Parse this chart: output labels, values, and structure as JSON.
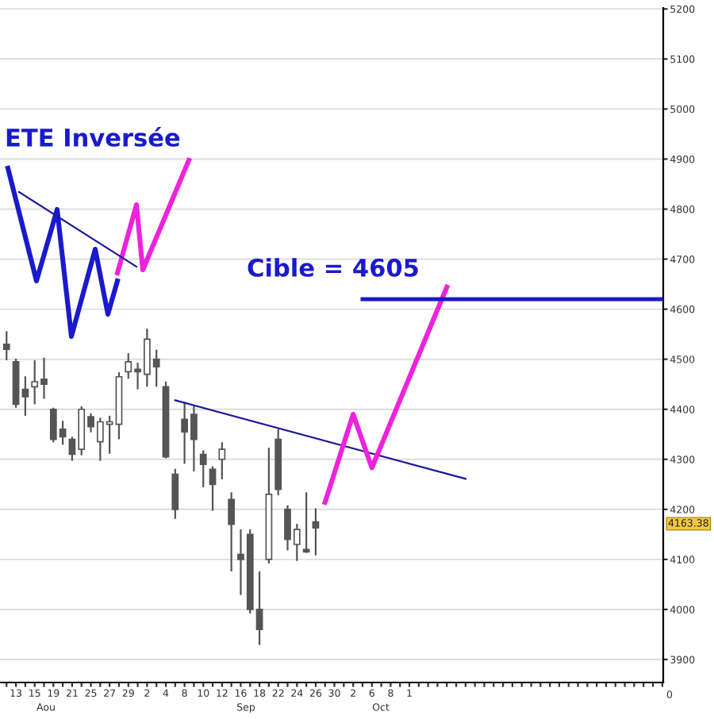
{
  "chart_data": {
    "type": "candlestick",
    "categories": [
      null,
      "13",
      null,
      "15",
      null,
      "19",
      null,
      "21",
      null,
      "25",
      null,
      "27",
      null,
      "29",
      null,
      "2",
      null,
      "4",
      null,
      "8",
      null,
      "10",
      null,
      "12",
      null,
      "16",
      null,
      "18",
      null,
      "22",
      null,
      "24",
      null,
      "26",
      null,
      "30",
      null,
      "2",
      null,
      "6",
      null,
      "8",
      null,
      "1",
      null,
      null,
      null,
      null,
      null,
      null,
      null,
      null,
      null,
      null,
      null,
      null,
      null,
      null,
      null,
      null,
      null,
      null,
      null,
      null,
      null,
      null,
      null,
      null,
      null,
      null,
      null
    ],
    "ohlc": [
      [
        4530,
        4556,
        4498,
        4520
      ],
      [
        4495,
        4501,
        4403,
        4410
      ],
      [
        4440,
        4466,
        4387,
        4425
      ],
      [
        4445,
        4498,
        4410,
        4455
      ],
      [
        4460,
        4503,
        4421,
        4450
      ],
      [
        4400,
        4403,
        4334,
        4340
      ],
      [
        4360,
        4377,
        4329,
        4345
      ],
      [
        4340,
        4345,
        4297,
        4310
      ],
      [
        4320,
        4406,
        4308,
        4400
      ],
      [
        4385,
        4392,
        4354,
        4365
      ],
      [
        4335,
        4383,
        4297,
        4375
      ],
      [
        4370,
        4387,
        4311,
        4375
      ],
      [
        4370,
        4474,
        4340,
        4465
      ],
      [
        4475,
        4512,
        4461,
        4495
      ],
      [
        4480,
        4493,
        4440,
        4475
      ],
      [
        4470,
        4561,
        4445,
        4540
      ],
      [
        4500,
        4519,
        4445,
        4485
      ],
      [
        4445,
        4455,
        4302,
        4305
      ],
      [
        4270,
        4281,
        4181,
        4200
      ],
      [
        4380,
        4415,
        4291,
        4355
      ],
      [
        4390,
        4407,
        4276,
        4340
      ],
      [
        4310,
        4318,
        4244,
        4290
      ],
      [
        4280,
        4286,
        4197,
        4250
      ],
      [
        4300,
        4334,
        4260,
        4320
      ],
      [
        4220,
        4234,
        4076,
        4170
      ],
      [
        4110,
        4160,
        4029,
        4100
      ],
      [
        4150,
        4160,
        3992,
        4000
      ],
      [
        4000,
        4076,
        3929,
        3960
      ],
      [
        4100,
        4323,
        4092,
        4230
      ],
      [
        4340,
        4360,
        4228,
        4240
      ],
      [
        4200,
        4208,
        4118,
        4140
      ],
      [
        4130,
        4171,
        4097,
        4160
      ],
      [
        4120,
        4234,
        4113,
        4115
      ],
      [
        4175,
        4202,
        4108,
        4163
      ],
      null,
      null,
      null,
      null,
      null,
      null,
      null,
      null,
      null,
      null,
      null,
      null,
      null,
      null,
      null,
      null,
      null,
      null,
      null,
      null,
      null,
      null,
      null,
      null,
      null,
      null,
      null,
      null,
      null,
      null,
      null,
      null,
      null,
      null,
      null,
      null,
      null
    ],
    "color": "#555555",
    "series": [
      {
        "type": "line",
        "color": "#1a1a9a",
        "values": [
          null,
          null,
          null,
          null,
          null,
          null,
          null,
          null,
          null,
          null,
          null,
          null,
          null,
          null,
          null,
          null,
          null,
          null,
          4418,
          null,
          null,
          null,
          null,
          null,
          null,
          null,
          null,
          null,
          null,
          null,
          null,
          null,
          null,
          null,
          null,
          null,
          null,
          null,
          null,
          null,
          null,
          null,
          null,
          null,
          null,
          null,
          null,
          null,
          null,
          4261,
          null,
          null,
          null,
          null,
          null,
          null,
          null,
          null,
          null,
          null,
          null,
          null,
          null,
          null,
          null,
          null,
          null,
          null,
          null,
          null,
          null
        ]
      },
      {
        "type": "line",
        "color": "#ee22dd",
        "values": [
          null,
          null,
          null,
          null,
          null,
          null,
          null,
          null,
          null,
          null,
          null,
          null,
          null,
          null,
          null,
          null,
          null,
          null,
          null,
          null,
          null,
          null,
          null,
          null,
          null,
          null,
          null,
          null,
          null,
          null,
          null,
          null,
          null,
          null,
          4214,
          null,
          null,
          4390,
          null,
          4283,
          null,
          null,
          null,
          null,
          null,
          null,
          null,
          4644,
          null,
          null,
          null,
          null,
          null,
          null,
          null,
          null,
          null,
          null,
          null,
          null,
          null,
          null,
          null,
          null,
          null,
          null,
          null,
          null,
          null,
          null,
          null
        ]
      },
      {
        "type": "line",
        "color": "#1a1acc",
        "values": [
          null,
          null,
          null,
          null,
          null,
          null,
          null,
          null,
          null,
          null,
          null,
          null,
          null,
          null,
          null,
          null,
          null,
          null,
          null,
          null,
          null,
          null,
          null,
          null,
          null,
          null,
          null,
          null,
          null,
          null,
          null,
          null,
          null,
          null,
          null,
          null,
          null,
          null,
          4620,
          null,
          null,
          null,
          null,
          null,
          null,
          null,
          null,
          null,
          null,
          null,
          null,
          null,
          null,
          null,
          null,
          null,
          null,
          null,
          null,
          null,
          null,
          null,
          null,
          null,
          null,
          null,
          null,
          null,
          null,
          null,
          4620
        ]
      }
    ],
    "ylim": [
      3854,
      5202
    ],
    "yticks": [
      3900,
      4000,
      4100,
      4200,
      4300,
      4400,
      4500,
      4600,
      4700,
      4800,
      4900,
      5000,
      5100,
      5200
    ],
    "grid": "y",
    "annotations": [
      "ETE Inversée",
      "Cible = 4605",
      "4163.38",
      "Aou",
      "Sep",
      "Oct",
      "0"
    ]
  }
}
